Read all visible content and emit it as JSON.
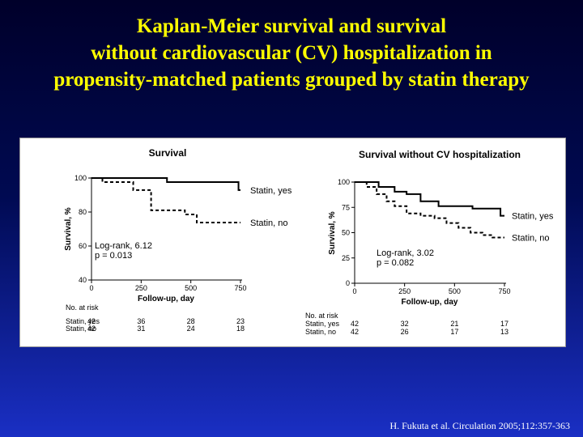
{
  "slide": {
    "title_lines": [
      "Kaplan-Meier survival and survival",
      "without cardiovascular (CV) hospitalization in",
      "propensity-matched patients grouped by statin therapy"
    ],
    "citation": "H. Fukuta et al. Circulation 2005;112:357-363"
  },
  "colors": {
    "title": "#ffff00",
    "panel_bg": "#ffffff",
    "curve": "#000000"
  },
  "chart_data": [
    {
      "type": "line",
      "title": "Survival",
      "xlabel": "Follow-up, day",
      "ylabel": "Survival, %",
      "xlim": [
        0,
        750
      ],
      "ylim": [
        40,
        100
      ],
      "xticks": [
        0,
        250,
        500,
        750
      ],
      "yticks": [
        40,
        60,
        80,
        100
      ],
      "ytick_labels": [
        "40",
        "60",
        "80",
        "100"
      ],
      "series": [
        {
          "name": "Statin, yes",
          "style": "solid",
          "x": [
            0,
            380,
            740,
            750
          ],
          "y": [
            100,
            97.6,
            92.9,
            92.9
          ]
        },
        {
          "name": "Statin, no",
          "style": "dashed",
          "x": [
            0,
            55,
            210,
            300,
            470,
            530,
            750
          ],
          "y": [
            100,
            97.6,
            92.9,
            81,
            78.6,
            73.8,
            73.8
          ]
        }
      ],
      "annotation": [
        "Log-rank, 6.12",
        "p = 0.013"
      ],
      "risk_table": {
        "header": "No. at risk",
        "columns": [
          0,
          250,
          500,
          750
        ],
        "rows": [
          {
            "label": "Statin, yes",
            "values": [
              "42",
              "36",
              "28",
              "23"
            ]
          },
          {
            "label": "Statin, no",
            "values": [
              "42",
              "31",
              "24",
              "18"
            ]
          }
        ]
      }
    },
    {
      "type": "line",
      "title": "Survival without CV hospitalization",
      "xlabel": "Follow-up, day",
      "ylabel": "Survival, %",
      "xlim": [
        0,
        750
      ],
      "ylim": [
        0,
        100
      ],
      "xticks": [
        0,
        250,
        500,
        750
      ],
      "yticks": [
        0,
        25,
        50,
        75,
        100
      ],
      "ytick_labels": [
        "0",
        "25",
        "50",
        "75",
        "100"
      ],
      "series": [
        {
          "name": "Statin, yes",
          "style": "solid",
          "x": [
            0,
            120,
            200,
            260,
            330,
            420,
            590,
            730,
            750
          ],
          "y": [
            100,
            95.2,
            90.5,
            88.1,
            81,
            76.2,
            73.8,
            66.7,
            66.7
          ]
        },
        {
          "name": "Statin, no",
          "style": "dashed",
          "x": [
            0,
            60,
            110,
            160,
            200,
            260,
            330,
            400,
            460,
            520,
            580,
            640,
            690,
            750
          ],
          "y": [
            100,
            95.2,
            88.1,
            81,
            76.2,
            69,
            66.7,
            64.3,
            59.5,
            54.8,
            50,
            47.6,
            45.2,
            45.2
          ]
        }
      ],
      "annotation": [
        "Log-rank, 3.02",
        "p = 0.082"
      ],
      "risk_table": {
        "header": "No. at risk",
        "columns": [
          0,
          250,
          500,
          750
        ],
        "rows": [
          {
            "label": "Statin, yes",
            "values": [
              "42",
              "32",
              "21",
              "17"
            ]
          },
          {
            "label": "Statin, no",
            "values": [
              "42",
              "26",
              "17",
              "13"
            ]
          }
        ]
      }
    }
  ]
}
